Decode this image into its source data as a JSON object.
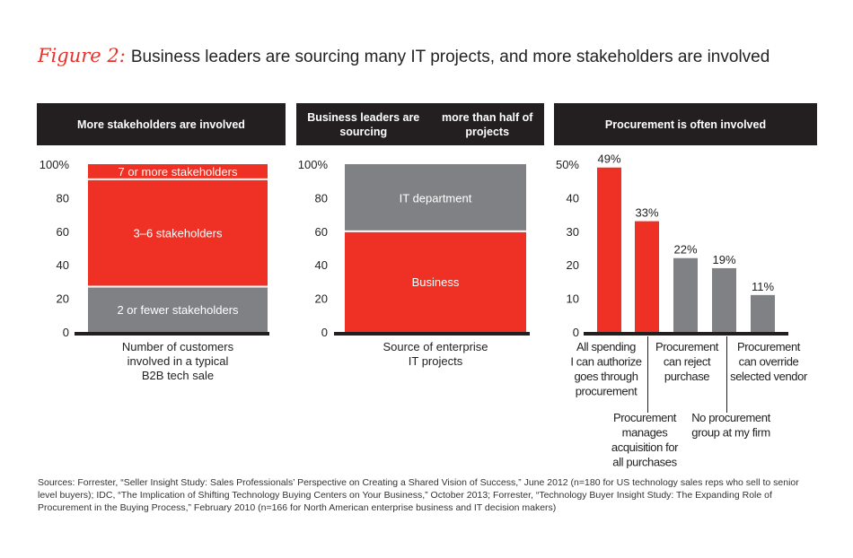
{
  "title": {
    "figure": "Figure 2:",
    "text": "Business leaders are sourcing many IT projects, and more stakeholders are involved"
  },
  "colors": {
    "red": "#ee3124",
    "gray": "#808184",
    "header": "#231f20"
  },
  "chart_data": [
    {
      "type": "bar",
      "stacked": true,
      "header": "More stakeholders are involved",
      "yticks": [
        "100%",
        "80",
        "60",
        "40",
        "20",
        "0"
      ],
      "ylim": [
        0,
        100
      ],
      "categories": [
        "Number of customers involved in a typical B2B tech sale"
      ],
      "series": [
        {
          "name": "2 or fewer stakeholders",
          "values": [
            27
          ],
          "color": "#808184"
        },
        {
          "name": "3–6 stakeholders",
          "values": [
            64
          ],
          "color": "#ee3124"
        },
        {
          "name": "7 or more stakeholders",
          "values": [
            9
          ],
          "color": "#ee3124"
        }
      ],
      "xlabel_lines": [
        "Number of customers",
        "involved in a typical",
        "B2B tech sale"
      ]
    },
    {
      "type": "bar",
      "stacked": true,
      "header": "Business leaders are sourcing more than half of projects",
      "header_lines": [
        "Business leaders are sourcing",
        "more than half of projects"
      ],
      "yticks": [
        "100%",
        "80",
        "60",
        "40",
        "20",
        "0"
      ],
      "ylim": [
        0,
        100
      ],
      "categories": [
        "Source of enterprise IT projects"
      ],
      "series": [
        {
          "name": "Business",
          "values": [
            60
          ],
          "color": "#ee3124"
        },
        {
          "name": "IT department",
          "values": [
            40
          ],
          "color": "#808184"
        }
      ],
      "xlabel_lines": [
        "Source of enterprise",
        "IT projects"
      ]
    },
    {
      "type": "bar",
      "header": "Procurement is often involved",
      "yticks": [
        "50%",
        "40",
        "30",
        "20",
        "10",
        "0"
      ],
      "ylim": [
        0,
        50
      ],
      "categories": [
        "All spending I can authorize goes through procurement",
        "Procurement manages acquisition for all purchases",
        "Procurement can reject purchase",
        "No procurement group at my firm",
        "Procurement can override selected vendor"
      ],
      "values": [
        49,
        33,
        22,
        19,
        11
      ],
      "labels": [
        "49%",
        "33%",
        "22%",
        "19%",
        "11%"
      ],
      "colors": [
        "#ee3124",
        "#ee3124",
        "#808184",
        "#808184",
        "#808184"
      ],
      "category_lines": [
        [
          "All spending",
          "I can authorize",
          "goes through",
          "procurement"
        ],
        [
          "Procurement",
          "manages",
          "acquisition for",
          "all purchases"
        ],
        [
          "Procurement",
          "can reject",
          "purchase"
        ],
        [
          "No procurement",
          "group at my firm"
        ],
        [
          "Procurement",
          "can override",
          "selected vendor"
        ]
      ]
    }
  ],
  "sources": "Sources: Forrester, “Seller Insight Study: Sales Professionals’ Perspective on Creating a Shared Vision of Success,” June 2012 (n=180 for US technology sales reps who sell to senior level buyers); IDC, “The Implication of Shifting Technology Buying Centers on Your Business,” October 2013; Forrester, “Technology Buyer Insight Study: The Expanding Role of Procurement in the Buying Process,” February 2010 (n=166 for North American enterprise business and IT decision makers)"
}
